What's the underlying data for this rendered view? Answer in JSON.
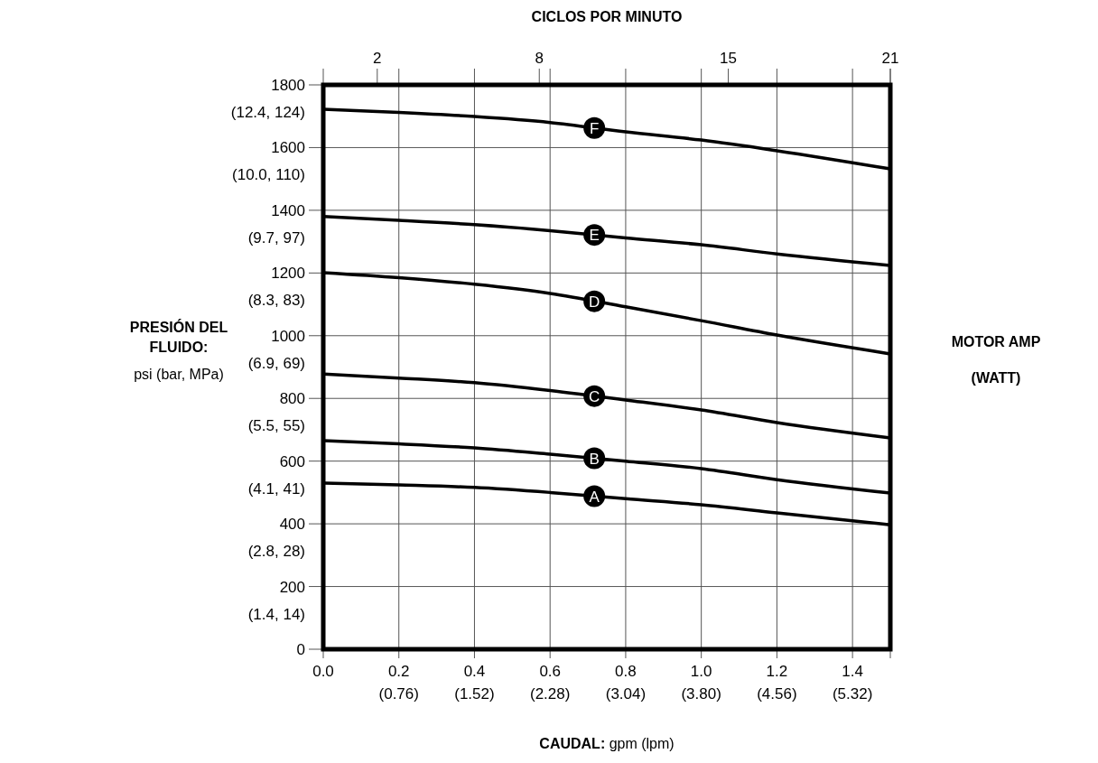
{
  "chart_data": {
    "type": "line",
    "x2label": "CICLOS POR MINUTO",
    "xlabel": "CAUDAL: gpm (lpm)",
    "ylabel": "PRESIÓN DEL\nFLUIDO:\npsi (bar, MPa)",
    "y2label": "MOTOR AMP\n\n(WATT)",
    "x": [
      0,
      0.2,
      0.4,
      0.6,
      0.8,
      1.0,
      1.2,
      1.5
    ],
    "series": [
      {
        "name": "A",
        "color": "#000000",
        "values": [
          530,
          524,
          516,
          500,
          480,
          461,
          435,
          397
        ]
      },
      {
        "name": "B",
        "color": "#000000",
        "values": [
          665,
          655,
          642,
          622,
          600,
          576,
          541,
          498
        ]
      },
      {
        "name": "C",
        "color": "#000000",
        "values": [
          878,
          865,
          850,
          825,
          795,
          763,
          723,
          674
        ]
      },
      {
        "name": "D",
        "color": "#000000",
        "values": [
          1201,
          1185,
          1164,
          1135,
          1092,
          1048,
          1002,
          942
        ]
      },
      {
        "name": "E",
        "color": "#000000",
        "values": [
          1380,
          1368,
          1354,
          1335,
          1312,
          1290,
          1261,
          1224
        ]
      },
      {
        "name": "F",
        "color": "#000000",
        "values": [
          1722,
          1712,
          1699,
          1680,
          1650,
          1624,
          1590,
          1532
        ]
      }
    ],
    "xlim": [
      0,
      1.5
    ],
    "ylim": [
      0,
      1800
    ],
    "xticks": [
      {
        "value": 0,
        "label": "0.0"
      },
      {
        "value": 0.2,
        "label": "0.2"
      },
      {
        "value": 0.4,
        "label": "0.4"
      },
      {
        "value": 0.6,
        "label": "0.6"
      },
      {
        "value": 0.8,
        "label": "0.8"
      },
      {
        "value": 1.0,
        "label": "1.0"
      },
      {
        "value": 1.2,
        "label": "1.2"
      },
      {
        "value": 1.4,
        "label": "1.4"
      },
      {
        "value": 1.5,
        "label": null
      }
    ],
    "annotations": [
      "(0.76)",
      "(1.52)",
      "(2.28)",
      "(3.04)",
      "(3.80)",
      "(4.56)",
      "(5.32)",
      "(1.4, 14)",
      "(2.8, 28)",
      "(4.1, 41)",
      "(5.5, 55)",
      "(6.9, 69)",
      "(8.3, 83)",
      "(9.7, 97)",
      "(10.0, 110)",
      "(12.4, 124)"
    ],
    "x2lim": [
      0,
      21
    ],
    "x2ticks": [
      2,
      8,
      15,
      21
    ],
    "yticks": [
      0,
      200,
      400,
      600,
      800,
      1000,
      1200,
      1400,
      1600,
      1800
    ],
    "grid": true,
    "marker": "none",
    "line_style": "solid"
  }
}
